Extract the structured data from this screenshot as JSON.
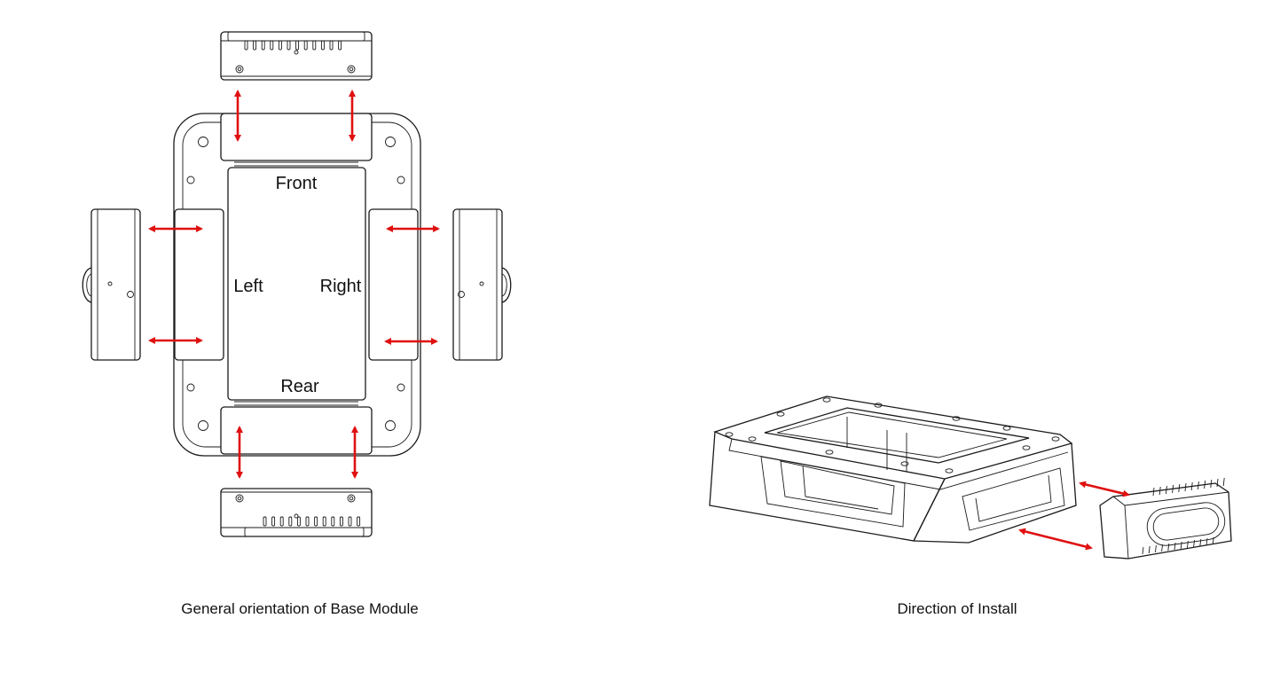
{
  "labels": {
    "front": "Front",
    "left": "Left",
    "right": "Right",
    "rear": "Rear"
  },
  "captions": {
    "left": "General orientation of Base Module",
    "right": "Direction of Install"
  },
  "colors": {
    "arrow": "#e01010",
    "line": "#1a1a1a"
  }
}
